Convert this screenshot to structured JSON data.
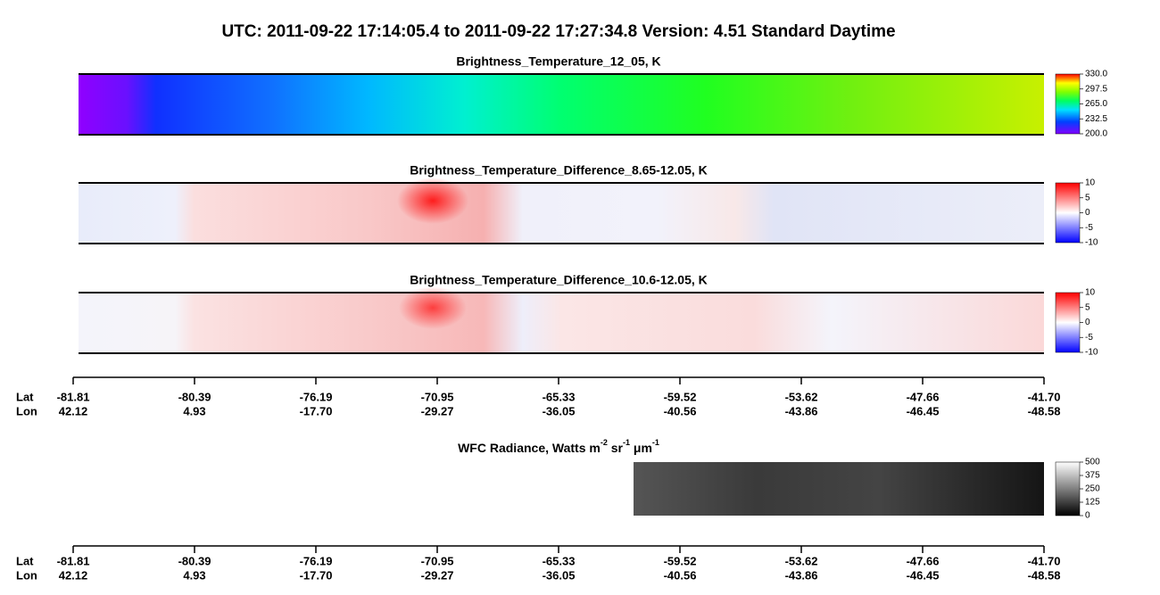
{
  "title": "UTC:  2011-09-22   17:14:05.4  to  2011-09-22   17:27:34.8    Version: 4.51  Standard Daytime",
  "chart_data": [
    {
      "type": "image",
      "title": "Brightness_Temperature_12_05, K",
      "colormap": "rainbow",
      "clim": [
        200,
        330
      ],
      "cticks": [
        {
          "value": 200,
          "label": "200.0"
        },
        {
          "value": 232.5,
          "label": "232.5"
        },
        {
          "value": 265,
          "label": "265.0"
        },
        {
          "value": 297.5,
          "label": "297.5"
        },
        {
          "value": 330,
          "label": "330.0"
        }
      ]
    },
    {
      "type": "image",
      "title": "Brightness_Temperature_Difference_8.65-12.05, K",
      "colormap": "diverging",
      "clim": [
        -10,
        10
      ],
      "cticks": [
        -10,
        -5,
        0,
        5,
        10
      ]
    },
    {
      "type": "image",
      "title": "Brightness_Temperature_Difference_10.6-12.05, K",
      "colormap": "diverging",
      "clim": [
        -10,
        10
      ],
      "cticks": [
        -10,
        -5,
        0,
        5,
        10
      ]
    },
    {
      "type": "image",
      "title_parts": [
        "WFC Radiance, Watts m",
        "-2",
        " sr",
        "-1",
        " μm",
        "-1"
      ],
      "colormap": "gray",
      "clim": [
        0,
        500
      ],
      "cticks": [
        0,
        125,
        250,
        375,
        500
      ]
    }
  ],
  "geo_axis": {
    "lat_label": "Lat",
    "lon_label": "Lon",
    "lat": [
      -81.81,
      -80.39,
      -76.19,
      -70.95,
      -65.33,
      -59.52,
      -53.62,
      -47.66,
      {
        "value": -41.7,
        "label": "-41.70"
      }
    ],
    "lon": [
      42.12,
      4.93,
      {
        "value": -17.7,
        "label": "-17.70"
      },
      -29.27,
      -36.05,
      -40.56,
      -43.86,
      -46.45,
      -48.58
    ]
  }
}
